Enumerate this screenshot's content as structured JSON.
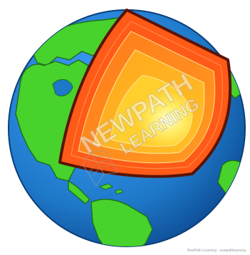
{
  "watermark": {
    "line1": "NEWPATH",
    "line2": "LEARNING"
  },
  "credit": "NewPath Learning · newpathlearning",
  "colors": {
    "ocean": "#1e78c8",
    "ocean_edge": "#0c3e7a",
    "land": "#48d22c",
    "land_edge": "#1d6f16",
    "crust": "#ff5a18",
    "crust_edge": "#5a1405",
    "mantle": "#ff8a1c",
    "outer_core": "#ffb21f",
    "inner_core": "#fff27a"
  }
}
